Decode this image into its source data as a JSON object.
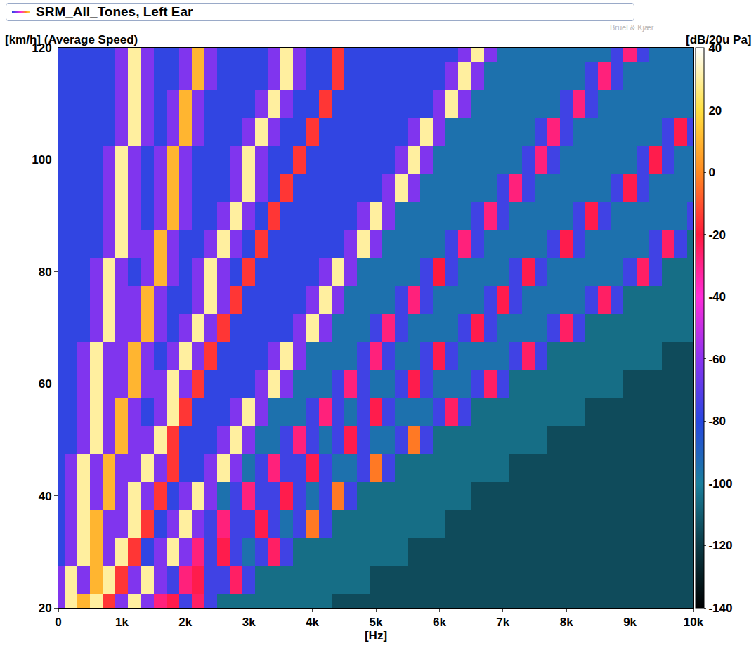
{
  "chart_data": {
    "type": "heatmap",
    "title": "SRM_All_Tones, Left Ear",
    "x_label": "[Hz]",
    "y_label": "[km/h] (Average Speed)",
    "colorbar_title": "[dB/20u Pa]",
    "watermark": "Brüel & Kjær",
    "grid": false,
    "xlim": [
      0,
      10000
    ],
    "ylim": [
      20,
      120
    ],
    "xticks": [
      0,
      {
        "value": 1000,
        "label": "1k"
      },
      {
        "value": 2000,
        "label": "2k"
      },
      {
        "value": 3000,
        "label": "3k"
      },
      {
        "value": 4000,
        "label": "4k"
      },
      {
        "value": 5000,
        "label": "5k"
      },
      {
        "value": 6000,
        "label": "6k"
      },
      {
        "value": 7000,
        "label": "7k"
      },
      {
        "value": 8000,
        "label": "8k"
      },
      {
        "value": 9000,
        "label": "9k"
      },
      {
        "value": 10000,
        "label": "10k"
      }
    ],
    "yticks": [
      20,
      40,
      60,
      80,
      100,
      120
    ],
    "colorbar_range": [
      -140,
      40
    ],
    "colorbar_ticks": [
      40,
      20,
      0,
      -20,
      -40,
      -60,
      -80,
      -100,
      -120,
      -140
    ],
    "x": [
      0,
      200,
      400,
      600,
      800,
      1000,
      1200,
      1400,
      1600,
      1800,
      2000,
      2200,
      2400,
      2600,
      2800,
      3000,
      3200,
      3400,
      3600,
      3800,
      4000,
      4200,
      4400,
      4600,
      4800,
      5000,
      5200,
      5400,
      5600,
      5800,
      6000,
      6200,
      6400,
      6600,
      6800,
      7000,
      7200,
      7400,
      7600,
      7800,
      8000,
      8200,
      8400,
      8600,
      8800,
      9000,
      9200,
      9400,
      9600,
      9800,
      10000
    ],
    "y": [
      20,
      25,
      30,
      35,
      40,
      45,
      50,
      55,
      60,
      65,
      70,
      75,
      80,
      85,
      90,
      95,
      100,
      105,
      110,
      115,
      120
    ],
    "z": [
      [
        -62,
        30,
        10,
        30,
        -15,
        -62,
        30,
        -62,
        -28,
        -22,
        -75,
        -25,
        -75,
        -105,
        -105,
        -105,
        -105,
        -105,
        -105,
        -105,
        -105,
        -105,
        -115,
        -115,
        -115,
        -115,
        -115,
        -115,
        -115,
        -115,
        -115,
        -115,
        -115,
        -115,
        -115,
        -115,
        -115,
        -115,
        -115,
        -115,
        -115,
        -115,
        -115,
        -115,
        -115,
        -115,
        -115,
        -115,
        -115,
        -115,
        -115
      ],
      [
        -62,
        30,
        -62,
        10,
        30,
        -15,
        -62,
        30,
        -62,
        -75,
        -28,
        -22,
        -75,
        -75,
        -25,
        -75,
        -105,
        -105,
        -105,
        -105,
        -105,
        -105,
        -105,
        -105,
        -105,
        -115,
        -115,
        -115,
        -115,
        -115,
        -115,
        -115,
        -115,
        -115,
        -115,
        -115,
        -115,
        -115,
        -115,
        -115,
        -115,
        -115,
        -115,
        -115,
        -115,
        -115,
        -115,
        -115,
        -115,
        -115,
        -115
      ],
      [
        -78,
        -62,
        30,
        10,
        -62,
        30,
        -15,
        -78,
        -62,
        30,
        -62,
        -28,
        -75,
        -22,
        -75,
        -95,
        -75,
        -25,
        -75,
        -105,
        -105,
        -105,
        -105,
        -105,
        -105,
        -105,
        -105,
        -105,
        -115,
        -115,
        -115,
        -115,
        -115,
        -115,
        -115,
        -115,
        -115,
        -115,
        -115,
        -115,
        -115,
        -115,
        -115,
        -115,
        -115,
        -115,
        -115,
        -115,
        -115,
        -115,
        -115
      ],
      [
        -78,
        -62,
        30,
        10,
        -62,
        -62,
        30,
        -15,
        -78,
        -62,
        30,
        -62,
        -75,
        -28,
        -75,
        -75,
        -22,
        -75,
        -95,
        -75,
        -3,
        -75,
        -105,
        -105,
        -105,
        -105,
        -105,
        -105,
        -105,
        -105,
        -105,
        -115,
        -115,
        -115,
        -115,
        -115,
        -115,
        -115,
        -115,
        -115,
        -115,
        -115,
        -115,
        -115,
        -115,
        -115,
        -115,
        -115,
        -115,
        -115,
        -115
      ],
      [
        -78,
        -62,
        30,
        -62,
        10,
        -62,
        30,
        -62,
        -15,
        -78,
        -62,
        30,
        -62,
        -95,
        -75,
        -28,
        -75,
        -75,
        -22,
        -75,
        -95,
        -75,
        -3,
        -75,
        -105,
        -105,
        -105,
        -105,
        -105,
        -105,
        -105,
        -105,
        -105,
        -115,
        -115,
        -115,
        -115,
        -115,
        -115,
        -115,
        -115,
        -115,
        -115,
        -115,
        -115,
        -115,
        -115,
        -115,
        -115,
        -115,
        -115
      ],
      [
        -78,
        -62,
        30,
        -62,
        10,
        -62,
        -62,
        30,
        -62,
        -15,
        -78,
        -78,
        -62,
        30,
        -62,
        -95,
        -75,
        -28,
        -75,
        -75,
        -22,
        -75,
        -95,
        -95,
        -75,
        -3,
        -75,
        -105,
        -105,
        -105,
        -105,
        -105,
        -105,
        -105,
        -105,
        -105,
        -115,
        -115,
        -115,
        -115,
        -115,
        -115,
        -115,
        -115,
        -115,
        -115,
        -115,
        -115,
        -115,
        -115,
        -115
      ],
      [
        -78,
        -78,
        -62,
        30,
        -62,
        10,
        -62,
        -62,
        30,
        -15,
        -78,
        -78,
        -78,
        -62,
        30,
        -62,
        -95,
        -95,
        -75,
        -28,
        -75,
        -95,
        -75,
        -22,
        -75,
        -95,
        -95,
        -75,
        -3,
        -75,
        -105,
        -105,
        -105,
        -105,
        -105,
        -105,
        -105,
        -105,
        -105,
        -115,
        -115,
        -115,
        -115,
        -115,
        -115,
        -115,
        -115,
        -115,
        -115,
        -115,
        -115
      ],
      [
        -78,
        -78,
        -62,
        30,
        -62,
        10,
        -62,
        -78,
        -62,
        30,
        -15,
        -78,
        -78,
        -78,
        -62,
        30,
        -62,
        -95,
        -95,
        -95,
        -75,
        -28,
        -75,
        -95,
        -75,
        -22,
        -75,
        -95,
        -95,
        -95,
        -75,
        -25,
        -75,
        -105,
        -105,
        -105,
        -105,
        -105,
        -105,
        -105,
        -105,
        -105,
        -115,
        -115,
        -115,
        -115,
        -115,
        -115,
        -115,
        -115,
        -115
      ],
      [
        -78,
        -78,
        -62,
        30,
        -62,
        -62,
        10,
        -62,
        -62,
        30,
        -62,
        -15,
        -78,
        -78,
        -78,
        -78,
        -62,
        30,
        -62,
        -95,
        -95,
        -95,
        -75,
        -28,
        -75,
        -95,
        -95,
        -75,
        -22,
        -75,
        -95,
        -95,
        -95,
        -75,
        -25,
        -75,
        -105,
        -105,
        -105,
        -105,
        -105,
        -105,
        -105,
        -105,
        -105,
        -115,
        -115,
        -115,
        -115,
        -115,
        -115
      ],
      [
        -78,
        -78,
        -62,
        30,
        -62,
        -62,
        10,
        -62,
        -78,
        -62,
        30,
        -62,
        -15,
        -78,
        -78,
        -78,
        -78,
        -62,
        30,
        -62,
        -95,
        -95,
        -95,
        -95,
        -75,
        -28,
        -75,
        -95,
        -95,
        -75,
        -22,
        -75,
        -95,
        -95,
        -95,
        -95,
        -75,
        -25,
        -75,
        -105,
        -105,
        -105,
        -105,
        -105,
        -105,
        -105,
        -105,
        -105,
        -115,
        -115,
        -115
      ],
      [
        -78,
        -78,
        -78,
        -62,
        30,
        -62,
        -62,
        10,
        -62,
        -78,
        -62,
        30,
        -62,
        -15,
        -78,
        -78,
        -78,
        -78,
        -78,
        -62,
        30,
        -62,
        -95,
        -95,
        -95,
        -75,
        -28,
        -75,
        -95,
        -95,
        -95,
        -95,
        -75,
        -22,
        -75,
        -95,
        -95,
        -95,
        -95,
        -75,
        -25,
        -75,
        -105,
        -105,
        -105,
        -105,
        -105,
        -105,
        -105,
        -105,
        -105
      ],
      [
        -78,
        -78,
        -78,
        -62,
        30,
        -62,
        -62,
        10,
        -62,
        -78,
        -78,
        -62,
        30,
        -62,
        -15,
        -78,
        -78,
        -78,
        -78,
        -78,
        -62,
        30,
        -62,
        -95,
        -95,
        -95,
        -95,
        -75,
        -28,
        -75,
        -95,
        -95,
        -95,
        -95,
        -75,
        -22,
        -75,
        -95,
        -95,
        -95,
        -95,
        -95,
        -75,
        -25,
        -75,
        -105,
        -105,
        -105,
        -105,
        -105,
        -105
      ],
      [
        -78,
        -78,
        -78,
        -62,
        30,
        -62,
        -78,
        -62,
        10,
        -62,
        -78,
        -62,
        30,
        -62,
        -78,
        -15,
        -78,
        -78,
        -78,
        -78,
        -78,
        -62,
        30,
        -62,
        -95,
        -95,
        -95,
        -95,
        -95,
        -75,
        -20,
        -75,
        -95,
        -95,
        -95,
        -95,
        -75,
        -22,
        -75,
        -95,
        -95,
        -95,
        -95,
        -95,
        -95,
        -75,
        -25,
        -75,
        -105,
        -105,
        -105
      ],
      [
        -78,
        -78,
        -78,
        -78,
        -62,
        30,
        -62,
        -62,
        10,
        -62,
        -78,
        -78,
        -62,
        30,
        -62,
        -78,
        -15,
        -78,
        -78,
        -78,
        -78,
        -78,
        -78,
        -62,
        30,
        -62,
        -95,
        -95,
        -95,
        -95,
        -95,
        -75,
        -28,
        -75,
        -95,
        -95,
        -95,
        -95,
        -95,
        -75,
        -22,
        -75,
        -95,
        -95,
        -95,
        -95,
        -95,
        -75,
        -25,
        -75,
        -105
      ],
      [
        -78,
        -78,
        -78,
        -78,
        -62,
        30,
        -62,
        -78,
        -62,
        10,
        -62,
        -78,
        -78,
        -62,
        30,
        -62,
        -78,
        -15,
        -78,
        -78,
        -78,
        -78,
        -78,
        -78,
        -62,
        30,
        -62,
        -95,
        -95,
        -95,
        -95,
        -95,
        -95,
        -75,
        -28,
        -75,
        -95,
        -95,
        -95,
        -95,
        -95,
        -75,
        -22,
        -75,
        -95,
        -95,
        -95,
        -95,
        -95,
        -95,
        -75
      ],
      [
        -78,
        -78,
        -78,
        -78,
        -62,
        30,
        -62,
        -78,
        -62,
        10,
        -62,
        -78,
        -78,
        -78,
        -62,
        30,
        -62,
        -78,
        -15,
        -78,
        -78,
        -78,
        -78,
        -78,
        -78,
        -78,
        -62,
        30,
        -62,
        -95,
        -95,
        -95,
        -95,
        -95,
        -95,
        -75,
        -28,
        -75,
        -95,
        -95,
        -95,
        -95,
        -95,
        -95,
        -75,
        -22,
        -75,
        -95,
        -95,
        -95,
        -95
      ],
      [
        -78,
        -78,
        -78,
        -78,
        -62,
        30,
        -62,
        -78,
        -62,
        10,
        -62,
        -78,
        -78,
        -78,
        -62,
        30,
        -62,
        -78,
        -78,
        -15,
        -78,
        -78,
        -78,
        -78,
        -78,
        -78,
        -78,
        -62,
        30,
        -62,
        -95,
        -95,
        -95,
        -95,
        -95,
        -95,
        -95,
        -75,
        -28,
        -75,
        -95,
        -95,
        -95,
        -95,
        -95,
        -95,
        -75,
        -22,
        -75,
        -95,
        -95
      ],
      [
        -78,
        -78,
        -78,
        -78,
        -78,
        -62,
        30,
        -62,
        -78,
        -62,
        10,
        -62,
        -78,
        -78,
        -78,
        -62,
        30,
        -62,
        -78,
        -78,
        -15,
        -78,
        -78,
        -78,
        -78,
        -78,
        -78,
        -78,
        -62,
        30,
        -62,
        -95,
        -95,
        -95,
        -95,
        -95,
        -95,
        -95,
        -75,
        -28,
        -75,
        -95,
        -95,
        -95,
        -95,
        -95,
        -95,
        -95,
        -75,
        -22,
        -75
      ],
      [
        -78,
        -78,
        -78,
        -78,
        -78,
        -62,
        30,
        -62,
        -78,
        -62,
        10,
        -62,
        -78,
        -78,
        -78,
        -78,
        -62,
        30,
        -62,
        -78,
        -78,
        -15,
        -78,
        -78,
        -78,
        -78,
        -78,
        -78,
        -78,
        -78,
        -62,
        30,
        -62,
        -95,
        -95,
        -95,
        -95,
        -95,
        -95,
        -95,
        -75,
        -28,
        -75,
        -95,
        -95,
        -95,
        -95,
        -95,
        -95,
        -95,
        -95
      ],
      [
        -78,
        -78,
        -78,
        -78,
        -78,
        -62,
        30,
        -62,
        -78,
        -78,
        -62,
        10,
        -62,
        -78,
        -78,
        -78,
        -78,
        -62,
        30,
        -62,
        -78,
        -78,
        -15,
        -78,
        -78,
        -78,
        -78,
        -78,
        -78,
        -78,
        -78,
        -62,
        30,
        -62,
        -95,
        -95,
        -95,
        -95,
        -95,
        -95,
        -95,
        -95,
        -75,
        -28,
        -75,
        -95,
        -95,
        -95,
        -95,
        -95,
        -95
      ],
      [
        -78,
        -78,
        -78,
        -78,
        -78,
        -62,
        30,
        -62,
        -78,
        -78,
        -62,
        10,
        -62,
        -78,
        -78,
        -78,
        -78,
        -62,
        30,
        -62,
        -78,
        -78,
        -15,
        -78,
        -78,
        -78,
        -78,
        -78,
        -78,
        -78,
        -78,
        -78,
        -62,
        30,
        -62,
        -95,
        -95,
        -95,
        -95,
        -95,
        -95,
        -95,
        -95,
        -95,
        -75,
        -28,
        -75,
        -95,
        -95,
        -95,
        -95
      ]
    ]
  }
}
